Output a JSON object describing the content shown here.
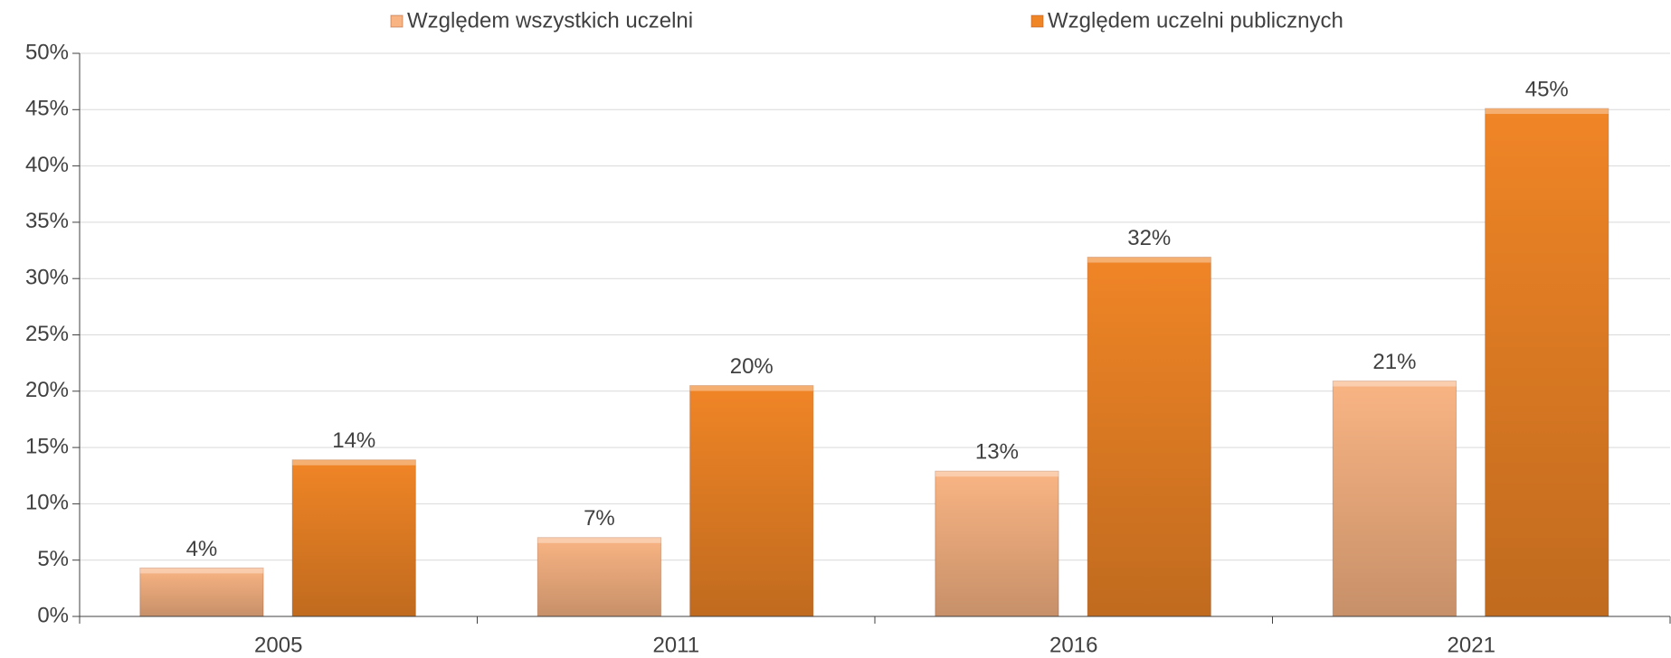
{
  "chart_data": {
    "type": "bar",
    "categories": [
      "2005",
      "2011",
      "2016",
      "2021"
    ],
    "series": [
      {
        "name": "Względem wszystkich uczelni",
        "color": "#f9b483",
        "values": [
          4.3,
          7.0,
          12.9,
          20.9
        ],
        "value_labels": [
          "4%",
          "7%",
          "13%",
          "21%"
        ]
      },
      {
        "name": "Względem uczelni publicznych",
        "color": "#f08526",
        "values": [
          13.9,
          20.5,
          31.9,
          45.1
        ],
        "value_labels": [
          "14%",
          "20%",
          "32%",
          "45%"
        ]
      }
    ],
    "ylim": [
      0,
      50
    ],
    "yticks": [
      {
        "value": 0,
        "label": "0%"
      },
      {
        "value": 5,
        "label": "5%"
      },
      {
        "value": 10,
        "label": "10%"
      },
      {
        "value": 15,
        "label": "15%"
      },
      {
        "value": 20,
        "label": "20%"
      },
      {
        "value": 25,
        "label": "25%"
      },
      {
        "value": 30,
        "label": "30%"
      },
      {
        "value": 35,
        "label": "35%"
      },
      {
        "value": 40,
        "label": "40%"
      },
      {
        "value": 45,
        "label": "45%"
      },
      {
        "value": 50,
        "label": "50%"
      }
    ],
    "grid": true,
    "legend": "top"
  }
}
